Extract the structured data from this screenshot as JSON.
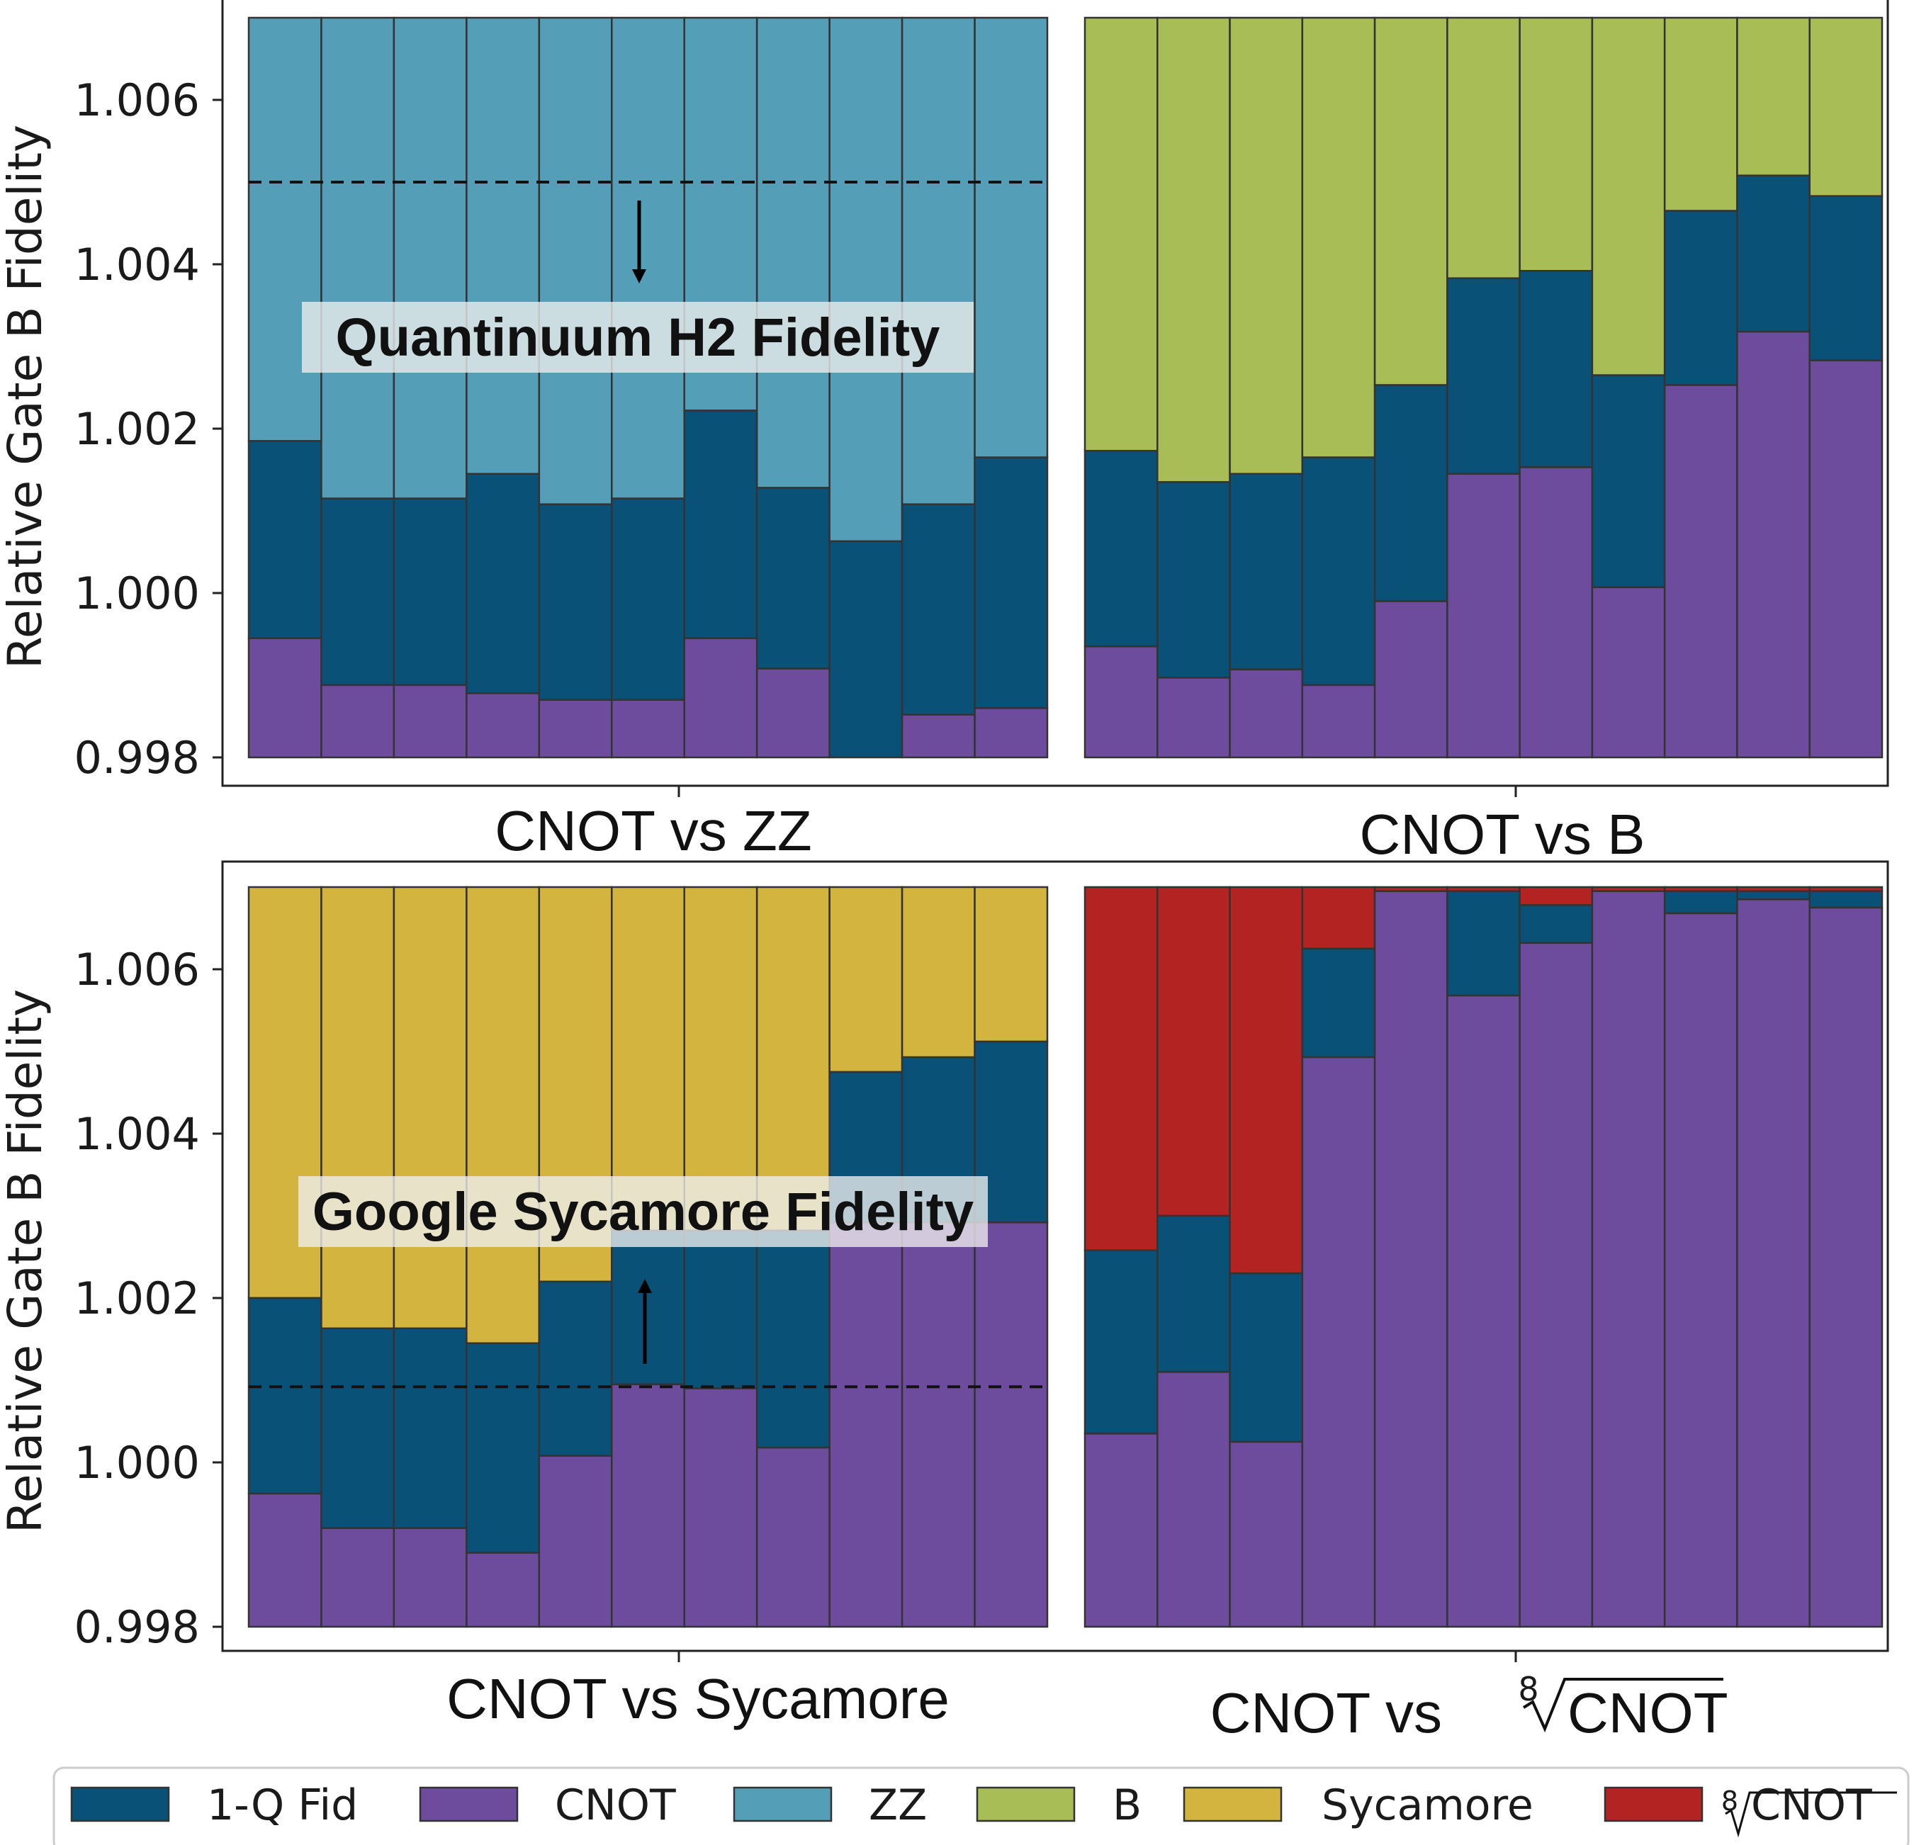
{
  "chart_data": {
    "type": "bar",
    "stacked": true,
    "ylabel": "Relative Gate B Fidelity",
    "ylim": [
      0.998,
      1.007
    ],
    "yticks": [
      "0.998",
      "1.000",
      "1.002",
      "1.004",
      "1.006"
    ],
    "colors": {
      "1-Q Fid": "#0a5177",
      "CNOT": "#6e4c9d",
      "ZZ": "#559eb7",
      "B": "#a8bd56",
      "Sycamore": "#d3b43f",
      "8rtCNOT": "#b32321",
      "edge": "#333333",
      "annotation_box": "#eeeeee"
    },
    "legend": [
      {
        "key": "1-Q Fid",
        "label": "1-Q Fid"
      },
      {
        "key": "CNOT",
        "label": "CNOT"
      },
      {
        "key": "ZZ",
        "label": "ZZ"
      },
      {
        "key": "B",
        "label": "B"
      },
      {
        "key": "Sycamore",
        "label": "Sycamore"
      },
      {
        "key": "8rtCNOT",
        "label": "CNOT",
        "radical_index": "8"
      }
    ],
    "panels": [
      {
        "id": "cnot-vs-zz",
        "xlabel": "CNOT vs ZZ",
        "left_layers": [
          0.99945,
          0.99888,
          0.99888,
          0.99878,
          0.9987,
          0.9987,
          0.99945,
          0.99908,
          0.99797,
          0.99852,
          0.9986
        ],
        "left_top": [
          1.00185,
          1.00115,
          1.00115,
          1.00145,
          1.00108,
          1.00115,
          1.00222,
          1.00128,
          1.00063,
          1.00108,
          1.00165
        ],
        "left_top_key": "1-Q Fid",
        "right_bottom_key": "ZZ",
        "dashed_line": 1.005,
        "annotation": "Quantinuum H2 Fidelity",
        "arrow": "down"
      },
      {
        "id": "cnot-vs-b",
        "xlabel": "CNOT vs B",
        "left_layers": [
          0.99935,
          0.99897,
          0.99907,
          0.99888,
          0.9999,
          1.00145,
          1.00153,
          1.00007,
          1.00253,
          1.00318,
          1.00283
        ],
        "left_top": [
          1.00173,
          1.00135,
          1.00145,
          1.00165,
          1.00253,
          1.00383,
          1.00392,
          1.00265,
          1.00465,
          1.00508,
          1.00483
        ],
        "left_top_key": "1-Q Fid",
        "right_bottom_key": "B"
      },
      {
        "id": "cnot-vs-sycamore",
        "xlabel": "CNOT vs Sycamore",
        "left_layers": [
          0.99962,
          0.9992,
          0.9992,
          0.9989,
          1.00008,
          1.00095,
          1.0009,
          1.00018,
          1.00292,
          1.00292,
          1.00292
        ],
        "left_top": [
          1.002,
          1.00163,
          1.00163,
          1.00145,
          1.0022,
          1.00282,
          1.00282,
          1.00282,
          1.00475,
          1.00493,
          1.00512
        ],
        "left_top_key": "1-Q Fid",
        "right_bottom_key": "Sycamore",
        "dashed_line": 1.00092,
        "annotation": "Google Sycamore Fidelity",
        "arrow": "up"
      },
      {
        "id": "cnot-vs-8rtcnot",
        "xlabel": "CNOT vs",
        "xlabel_radical": "CNOT",
        "xlabel_radical_index": "8",
        "left_layers": [
          1.00035,
          1.0011,
          1.00025,
          1.00493,
          1.00695,
          1.00568,
          1.00632,
          1.00695,
          1.00668,
          1.00685,
          1.00675
        ],
        "left_top": [
          1.00258,
          1.003,
          1.0023,
          1.00625,
          1.00695,
          1.00695,
          1.00678,
          1.00695,
          1.00695,
          1.00695,
          1.00695
        ],
        "left_top_key": "1-Q Fid",
        "right_bottom_key": "8rtCNOT"
      }
    ]
  }
}
